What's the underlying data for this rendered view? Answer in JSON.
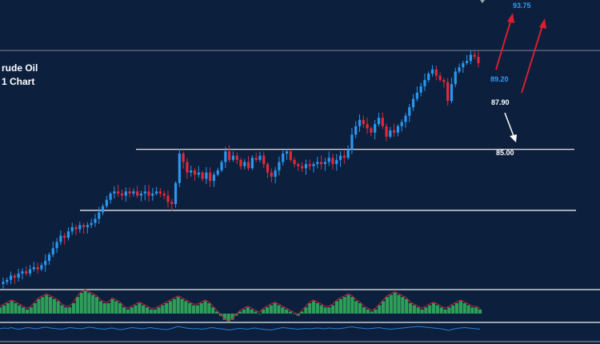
{
  "chart_data": {
    "type": "candlestick",
    "title_lines": [
      "rude Oil",
      "1 Chart"
    ],
    "colors": {
      "background": "#0c1f3d",
      "bull": "#2a97ee",
      "bear": "#e02a3a",
      "level_line": "#ffffff",
      "grid_line": "#7f8b9a",
      "osc_bar": "#2f9e59",
      "osc_line": "#c8203b",
      "rsi_line": "#2a7fd6",
      "target_arrow": "#d81f32",
      "down_arrow": "#ffffff",
      "target_label": "#3b98f2",
      "level_label": "#ffffff"
    },
    "price_range": [
      81.5,
      95.0
    ],
    "close_series": [
      81.6,
      81.7,
      81.9,
      81.8,
      82.0,
      82.1,
      82.0,
      82.2,
      82.3,
      82.2,
      82.4,
      82.6,
      82.9,
      83.2,
      83.5,
      83.8,
      83.7,
      84.0,
      84.2,
      84.1,
      84.3,
      84.2,
      84.3,
      84.4,
      84.6,
      84.9,
      85.2,
      85.5,
      85.8,
      85.9,
      85.8,
      85.7,
      85.9,
      85.8,
      85.9,
      85.7,
      85.8,
      85.9,
      85.7,
      85.8,
      85.9,
      85.8,
      85.7,
      85.4,
      85.3,
      86.3,
      87.7,
      87.3,
      86.8,
      86.9,
      86.7,
      86.8,
      86.5,
      86.8,
      86.4,
      86.7,
      86.9,
      87.3,
      87.8,
      87.4,
      87.6,
      87.4,
      87.1,
      87.3,
      87.0,
      87.5,
      87.4,
      87.6,
      87.2,
      86.8,
      86.6,
      86.9,
      87.3,
      87.7,
      87.8,
      87.4,
      87.2,
      87.1,
      87.0,
      87.2,
      87.1,
      87.2,
      87.3,
      87.2,
      87.3,
      87.5,
      87.2,
      87.4,
      87.6,
      87.5,
      87.9,
      88.6,
      89.0,
      89.3,
      89.1,
      88.9,
      88.7,
      89.1,
      89.4,
      89.0,
      88.5,
      88.8,
      88.7,
      89.0,
      89.2,
      89.5,
      89.9,
      90.3,
      90.6,
      90.9,
      91.2,
      91.5,
      91.7,
      91.4,
      91.2,
      91.1,
      90.2,
      91.0,
      91.6,
      91.8,
      92.0,
      92.1,
      92.4,
      92.3,
      92.0
    ],
    "levels": [
      {
        "value": 89.2,
        "label": "89.20",
        "style": "target",
        "line": false
      },
      {
        "value": 93.75,
        "label": "93.75",
        "style": "target",
        "line": false
      },
      {
        "value": 87.9,
        "label": "87.90",
        "style": "level",
        "line": true
      },
      {
        "value": 85.0,
        "label": "85.00",
        "style": "level",
        "line": true
      }
    ],
    "horizontal_grid": [
      92.6
    ],
    "oscillator": {
      "type": "histogram_with_signal",
      "values": [
        0.3,
        0.4,
        0.5,
        0.6,
        0.5,
        0.4,
        0.3,
        0.2,
        0.3,
        0.5,
        0.7,
        0.8,
        0.9,
        0.8,
        0.7,
        0.6,
        0.4,
        0.3,
        0.3,
        0.5,
        0.8,
        1.0,
        1.1,
        1.0,
        0.9,
        0.8,
        0.6,
        0.5,
        0.5,
        0.7,
        0.6,
        0.5,
        0.3,
        0.2,
        0.3,
        0.4,
        0.5,
        0.4,
        0.3,
        0.2,
        0.2,
        0.3,
        0.4,
        0.5,
        0.6,
        0.7,
        0.8,
        0.7,
        0.6,
        0.5,
        0.4,
        0.4,
        0.5,
        0.6,
        0.5,
        0.3,
        0.1,
        -0.1,
        -0.3,
        -0.4,
        -0.3,
        -0.1,
        0.1,
        0.2,
        0.3,
        0.2,
        0.1,
        0.0,
        0.2,
        0.3,
        0.4,
        0.5,
        0.4,
        0.3,
        0.2,
        0.1,
        0.0,
        -0.1,
        0.1,
        0.3,
        0.5,
        0.6,
        0.5,
        0.4,
        0.3,
        0.3,
        0.4,
        0.6,
        0.7,
        0.8,
        0.9,
        0.8,
        0.6,
        0.5,
        0.3,
        0.2,
        0.1,
        0.2,
        0.4,
        0.6,
        0.8,
        0.9,
        1.0,
        0.9,
        0.8,
        0.7,
        0.5,
        0.4,
        0.3,
        0.2,
        0.3,
        0.4,
        0.5,
        0.4,
        0.3,
        0.2,
        0.3,
        0.4,
        0.5,
        0.6,
        0.5,
        0.4,
        0.3,
        0.3,
        0.2
      ]
    },
    "rsi": {
      "values": [
        52,
        54,
        53,
        55,
        52,
        51,
        53,
        55,
        54,
        52,
        53,
        55,
        56,
        54,
        53,
        52,
        51,
        53,
        55,
        54,
        53,
        52,
        54,
        56,
        55,
        53,
        52,
        51,
        53,
        54,
        52,
        50,
        51,
        53,
        55,
        54,
        53,
        52,
        54,
        55,
        53,
        52,
        51,
        50,
        52,
        55,
        58,
        56,
        54,
        53,
        52,
        53,
        51,
        52,
        54,
        55,
        53,
        52,
        51,
        49,
        50,
        52,
        53,
        52,
        51,
        53,
        54,
        52,
        51,
        50,
        49,
        51,
        53,
        55,
        54,
        53,
        52,
        51,
        52,
        53,
        52,
        53,
        54,
        53,
        52,
        54,
        53,
        52,
        53,
        54,
        56,
        57,
        55,
        54,
        53,
        52,
        53,
        54,
        55,
        53,
        52,
        51,
        52,
        53,
        54,
        55,
        56,
        57,
        58,
        57,
        56,
        55,
        54,
        53,
        52,
        50,
        48,
        51,
        53,
        54,
        55,
        54,
        53,
        52,
        51
      ]
    }
  }
}
